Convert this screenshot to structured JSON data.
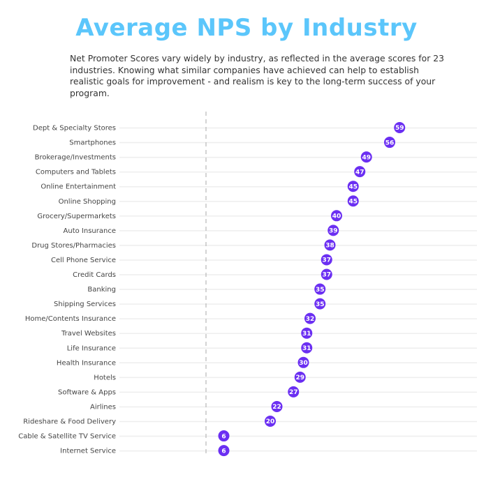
{
  "chart_data": {
    "type": "dot",
    "title": "Average NPS by Industry",
    "subtitle": "Net Promoter Scores vary widely by industry, as reflected in the average scores for 23 industries. Knowing what similar companies have achieved can help to establish realistic goals for improvement - and realism is key to the long-term success of your program.",
    "categories": [
      "Dept & Specialty Stores",
      "Smartphones",
      "Brokerage/Investments",
      "Computers and Tablets",
      "Online Entertainment",
      "Online Shopping",
      "Grocery/Supermarkets",
      "Auto Insurance",
      "Drug Stores/Pharmacies",
      "Cell Phone Service",
      "Credit Cards",
      "Banking",
      "Shipping Services",
      "Home/Contents Insurance",
      "Travel Websites",
      "Life Insurance",
      "Health Insurance",
      "Hotels",
      "Software & Apps",
      "Airlines",
      "Rideshare & Food Delivery",
      "Cable & Satellite TV Service",
      "Internet Service"
    ],
    "values": [
      59,
      56,
      49,
      47,
      45,
      45,
      40,
      39,
      38,
      37,
      37,
      35,
      35,
      32,
      31,
      31,
      30,
      29,
      27,
      22,
      20,
      6,
      6
    ],
    "xlim": [
      0,
      80
    ],
    "grid": true,
    "colors": {
      "title": "#5bc6fb",
      "dot": "#6b2ff2",
      "grid": "#eeeeee",
      "zero_line": "#aaaaaa"
    }
  }
}
